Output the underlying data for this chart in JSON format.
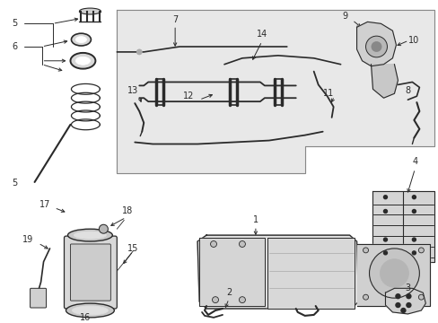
{
  "bg_color": "#ffffff",
  "line_color": "#2a2a2a",
  "box_fill": "#e8e8e8",
  "box_edge": "#888888",
  "figsize": [
    4.89,
    3.6
  ],
  "dpi": 100
}
